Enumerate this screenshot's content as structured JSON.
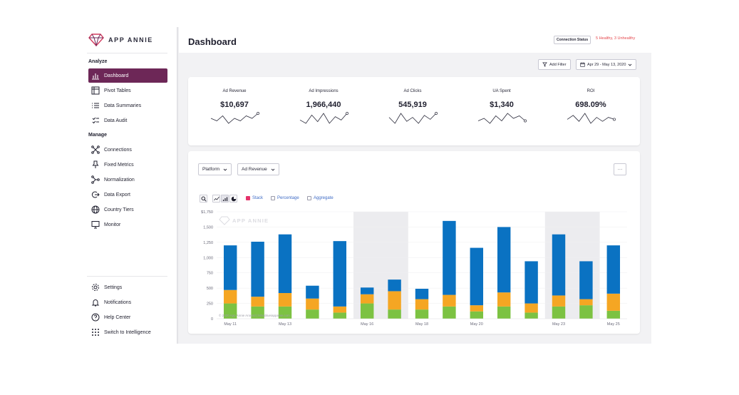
{
  "app": {
    "brand": "APP ANNIE",
    "page_title": "Dashboard"
  },
  "sidebar": {
    "analyze_label": "Analyze",
    "manage_label": "Manage",
    "analyze_items": [
      {
        "label": "Dashboard",
        "icon": "bar-chart-icon",
        "active": true
      },
      {
        "label": "Pivot Tables",
        "icon": "table-icon"
      },
      {
        "label": "Data Summaries",
        "icon": "list-icon"
      },
      {
        "label": "Data Audit",
        "icon": "clipboard-check-icon"
      }
    ],
    "manage_items": [
      {
        "label": "Connections",
        "icon": "connections-icon"
      },
      {
        "label": "Fixed Metrics",
        "icon": "pin-icon"
      },
      {
        "label": "Normalization",
        "icon": "normalization-icon"
      },
      {
        "label": "Data Export",
        "icon": "export-icon"
      },
      {
        "label": "Country Tiers",
        "icon": "globe-icon"
      },
      {
        "label": "Monitor",
        "icon": "monitor-icon"
      }
    ],
    "bottom_items": [
      {
        "label": "Settings",
        "icon": "gear-icon"
      },
      {
        "label": "Notifications",
        "icon": "bell-icon"
      },
      {
        "label": "Help Center",
        "icon": "help-icon"
      },
      {
        "label": "Switch to Intelligence",
        "icon": "grid-dots-icon"
      }
    ]
  },
  "header": {
    "connection_status_label": "Connection Status",
    "connection_health": "5 Healthy, 3 Unhealthy"
  },
  "filters": {
    "add_filter_label": "Add Filter",
    "date_range": "Apr 29 - May 13, 2020"
  },
  "kpis": [
    {
      "label": "Ad Revenue",
      "value": "$10,697",
      "spark": [
        5,
        4,
        6,
        3,
        5,
        4,
        6,
        5,
        7
      ]
    },
    {
      "label": "Ad Impressions",
      "value": "1,966,440",
      "spark": [
        4,
        2,
        7,
        3,
        8,
        2,
        6,
        4,
        8
      ]
    },
    {
      "label": "Ad Clicks",
      "value": "545,919",
      "spark": [
        5,
        2,
        7,
        3,
        5,
        2,
        6,
        4,
        7
      ]
    },
    {
      "label": "UA Spent",
      "value": "$1,340",
      "spark": [
        4,
        5,
        3,
        6,
        4,
        7,
        5,
        6,
        4
      ]
    },
    {
      "label": "ROI",
      "value": "698.09%",
      "spark": [
        4,
        6,
        3,
        7,
        2,
        5,
        3,
        5,
        4
      ]
    }
  ],
  "chart_controls": {
    "dimension": "Platform",
    "metric": "Ad Revenue",
    "more_label": "···",
    "options": [
      {
        "label": "Stack",
        "checked": true
      },
      {
        "label": "Percentage",
        "checked": false
      },
      {
        "label": "Aggregate",
        "checked": false
      }
    ],
    "watermark": "APP ANNIE",
    "copyright": "© 2020 App Annie Around | lshiablueiappanie.com"
  },
  "chart_data": {
    "type": "bar",
    "stacked": true,
    "y_tick_labels": [
      "$1,750",
      "1,500",
      "1,250",
      "1,000",
      "750",
      "500",
      "250",
      "0"
    ],
    "ylim": [
      0,
      1750
    ],
    "x_tick_labels": [
      {
        "label": "May 11",
        "index": 0
      },
      {
        "label": "May 13",
        "index": 2
      },
      {
        "label": "May 16",
        "index": 5
      },
      {
        "label": "May 18",
        "index": 7
      },
      {
        "label": "May 20",
        "index": 9
      },
      {
        "label": "May 23",
        "index": 12
      },
      {
        "label": "May 25",
        "index": 14
      }
    ],
    "bar_count": 15,
    "highlight_ranges": [
      [
        5,
        6
      ],
      [
        12,
        13
      ]
    ],
    "series": [
      {
        "color": "#7cc242",
        "values": [
          250,
          200,
          200,
          150,
          100,
          250,
          150,
          150,
          200,
          120,
          200,
          100,
          200,
          220,
          130
        ]
      },
      {
        "color": "#f5a623",
        "values": [
          220,
          160,
          220,
          180,
          100,
          150,
          300,
          170,
          190,
          100,
          230,
          150,
          180,
          100,
          280
        ]
      },
      {
        "color": "#0a72c2",
        "values": [
          730,
          900,
          960,
          210,
          1070,
          110,
          190,
          170,
          1210,
          940,
          1070,
          690,
          1000,
          620,
          790
        ]
      }
    ]
  }
}
